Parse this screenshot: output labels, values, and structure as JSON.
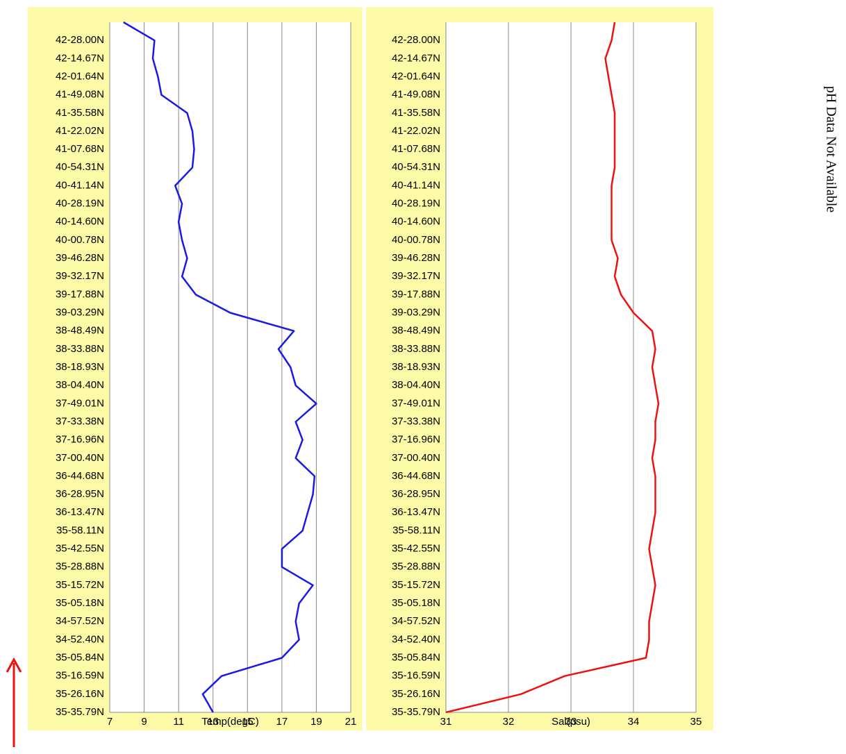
{
  "chart_data": [
    {
      "type": "line",
      "x_label": "Temp(degC)",
      "color": "#1a1ae6",
      "categories": [
        "35-35.79N",
        "35-26.16N",
        "35-16.59N",
        "35-05.84N",
        "34-52.40N",
        "34-57.52N",
        "35-05.18N",
        "35-15.72N",
        "35-28.88N",
        "35-42.55N",
        "35-58.11N",
        "36-13.47N",
        "36-28.95N",
        "36-44.68N",
        "37-00.40N",
        "37-16.96N",
        "37-33.38N",
        "37-49.01N",
        "38-04.40N",
        "38-18.93N",
        "38-33.88N",
        "38-48.49N",
        "39-03.29N",
        "39-17.88N",
        "39-32.17N",
        "39-46.28N",
        "40-00.78N",
        "40-14.60N",
        "40-28.19N",
        "40-41.14N",
        "40-54.31N",
        "41-07.68N",
        "41-22.02N",
        "41-35.58N",
        "41-49.08N",
        "42-01.64N",
        "42-14.67N",
        "42-28.00N",
        null
      ],
      "values": [
        13.0,
        12.4,
        13.5,
        17.0,
        18.0,
        17.8,
        18.0,
        18.8,
        17.0,
        17.0,
        18.2,
        18.5,
        18.8,
        18.9,
        17.8,
        18.2,
        17.8,
        19.0,
        17.8,
        17.5,
        16.8,
        17.7,
        14.0,
        12.0,
        11.2,
        11.5,
        11.2,
        11.0,
        11.2,
        10.8,
        11.8,
        11.9,
        11.8,
        11.5,
        10.0,
        9.8,
        9.5,
        9.6,
        7.8
      ],
      "xlim": [
        7,
        21
      ],
      "xticks": [
        7,
        9,
        11,
        13,
        15,
        17,
        19,
        21
      ],
      "grid": true
    },
    {
      "type": "line",
      "x_label": "Sal(psu)",
      "color": "#ee1111",
      "categories": [
        "35-35.79N",
        "35-26.16N",
        "35-16.59N",
        "35-05.84N",
        "34-52.40N",
        "34-57.52N",
        "35-05.18N",
        "35-15.72N",
        "35-28.88N",
        "35-42.55N",
        "35-58.11N",
        "36-13.47N",
        "36-28.95N",
        "36-44.68N",
        "37-00.40N",
        "37-16.96N",
        "37-33.38N",
        "37-49.01N",
        "38-04.40N",
        "38-18.93N",
        "38-33.88N",
        "38-48.49N",
        "39-03.29N",
        "39-17.88N",
        "39-32.17N",
        "39-46.28N",
        "40-00.78N",
        "40-14.60N",
        "40-28.19N",
        "40-41.14N",
        "40-54.31N",
        "41-07.68N",
        "41-22.02N",
        "41-35.58N",
        "41-49.08N",
        "42-01.64N",
        "42-14.67N",
        "42-28.00N",
        null
      ],
      "values": [
        31.0,
        32.2,
        32.9,
        34.2,
        34.25,
        34.25,
        34.3,
        34.35,
        34.3,
        34.25,
        34.3,
        34.35,
        34.35,
        34.35,
        34.3,
        34.35,
        34.35,
        34.4,
        34.35,
        34.3,
        34.35,
        34.3,
        34.0,
        33.8,
        33.7,
        33.75,
        33.65,
        33.65,
        33.65,
        33.65,
        33.7,
        33.7,
        33.7,
        33.7,
        33.65,
        33.6,
        33.55,
        33.65,
        33.7
      ],
      "xlim": [
        31,
        35
      ],
      "xticks": [
        31,
        32,
        33,
        34,
        35
      ],
      "grid": true
    }
  ],
  "side_text": "pH Data Not Available"
}
